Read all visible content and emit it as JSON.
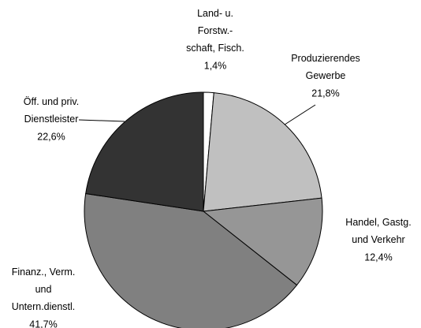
{
  "chart_data": {
    "type": "pie",
    "categories": [
      "Land- u.\nForstw.-\nschaft, Fisch.",
      "Produzierendes\nGewerbe",
      "Handel, Gastg.\nund Verkehr",
      "Finanz., Verm.\nund\nUntern.dienstl.",
      "Öff. und priv.\nDienstleister"
    ],
    "values": [
      1.4,
      21.8,
      12.4,
      41.7,
      22.6
    ],
    "value_labels": [
      "1,4%",
      "21,8%",
      "12,4%",
      "41,7%",
      "22,6%"
    ],
    "colors": [
      "#ffffff",
      "#c0c0c0",
      "#969696",
      "#808080",
      "#333333"
    ]
  }
}
